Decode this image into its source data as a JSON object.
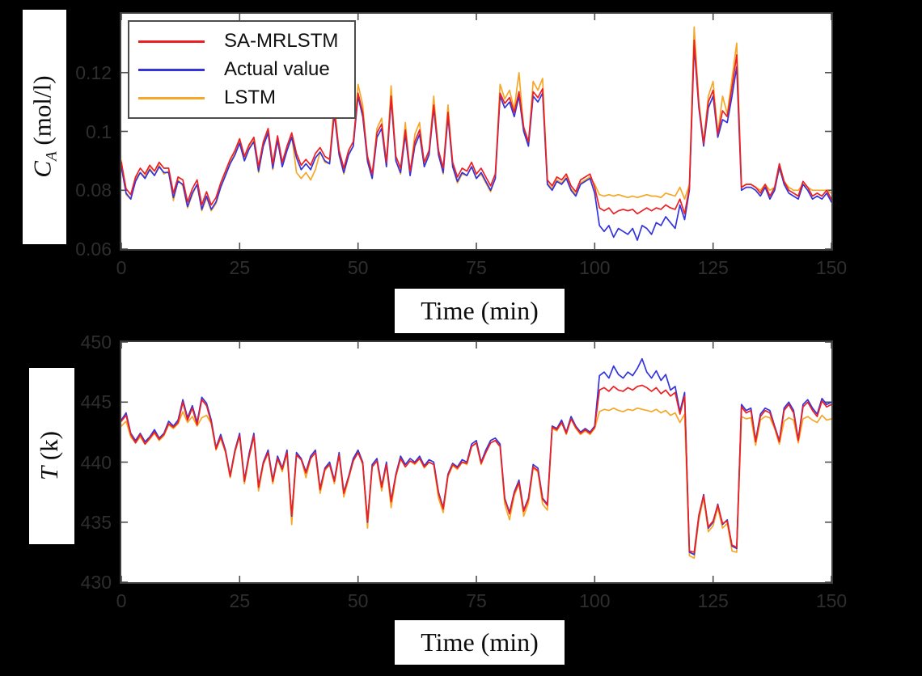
{
  "figure": {
    "background_color": "#000000",
    "plot_background_color": "#ffffff",
    "frame_color": "#3d3d3d",
    "tick_color": "#4f4f4f",
    "tick_label_color": "#2e2e2e",
    "legend_border_color": "#4d4d4d"
  },
  "axis_labels": {
    "top_y": {
      "main": "C",
      "sub": "A",
      "unit": " (mol/l)"
    },
    "bottom_y": {
      "main": "T",
      "sub": "",
      "unit": " (k)"
    }
  },
  "chart_data": [
    {
      "type": "line",
      "title": "",
      "xlabel": "Time (min)",
      "ylabel": "C_A (mol/l)",
      "xlim": [
        0,
        150
      ],
      "ylim": [
        0.06,
        0.14
      ],
      "xticks": [
        0,
        25,
        50,
        75,
        100,
        125,
        150
      ],
      "xtick_labels": [
        "0",
        "25",
        "50",
        "75",
        "100",
        "125",
        "150"
      ],
      "yticks": [
        0.06,
        0.08,
        0.1,
        0.12
      ],
      "ytick_labels": [
        "0.06",
        "0.08",
        "0.1",
        "0.12"
      ],
      "grid": false,
      "legend_position": "top-left",
      "x_start": 0,
      "x_step": 1,
      "series": [
        {
          "name": "SA-MRLSTM",
          "color": "#ec2024",
          "values": [
            0.0895,
            0.0805,
            0.0785,
            0.0845,
            0.0875,
            0.0855,
            0.0885,
            0.0865,
            0.0895,
            0.0875,
            0.0875,
            0.079,
            0.0845,
            0.0835,
            0.076,
            0.0805,
            0.0835,
            0.075,
            0.0795,
            0.075,
            0.0775,
            0.0825,
            0.0865,
            0.0905,
            0.0935,
            0.0975,
            0.0915,
            0.0955,
            0.098,
            0.088,
            0.0965,
            0.101,
            0.089,
            0.0985,
            0.0895,
            0.095,
            0.0995,
            0.0925,
            0.0885,
            0.0905,
            0.0885,
            0.0925,
            0.0945,
            0.0915,
            0.0905,
            0.107,
            0.0935,
            0.0875,
            0.0935,
            0.0965,
            0.113,
            0.1065,
            0.0915,
            0.0855,
            0.0995,
            0.1025,
            0.0895,
            0.112,
            0.0915,
            0.0875,
            0.1005,
            0.0865,
            0.0965,
            0.1005,
            0.0895,
            0.0935,
            0.109,
            0.0935,
            0.0875,
            0.1065,
            0.0895,
            0.0845,
            0.0875,
            0.0865,
            0.0895,
            0.0855,
            0.0875,
            0.0845,
            0.0815,
            0.0855,
            0.113,
            0.1095,
            0.1115,
            0.1065,
            0.1135,
            0.1015,
            0.0965,
            0.1135,
            0.1115,
            0.1145,
            0.0835,
            0.0815,
            0.0845,
            0.0835,
            0.0855,
            0.0815,
            0.0795,
            0.0835,
            0.0845,
            0.0855,
            0.081,
            0.074,
            0.073,
            0.074,
            0.072,
            0.073,
            0.0735,
            0.073,
            0.0735,
            0.072,
            0.073,
            0.074,
            0.073,
            0.074,
            0.0735,
            0.075,
            0.074,
            0.0735,
            0.077,
            0.072,
            0.081,
            0.131,
            0.109,
            0.096,
            0.11,
            0.114,
            0.099,
            0.107,
            0.105,
            0.115,
            0.126,
            0.081,
            0.082,
            0.082,
            0.081,
            0.079,
            0.082,
            0.078,
            0.081,
            0.089,
            0.083,
            0.08,
            0.079,
            0.078,
            0.083,
            0.081,
            0.078,
            0.079,
            0.078,
            0.08,
            0.077
          ]
        },
        {
          "name": "Actual value",
          "color": "#3434dd",
          "values": [
            0.088,
            0.079,
            0.077,
            0.083,
            0.086,
            0.084,
            0.087,
            0.085,
            0.088,
            0.086,
            0.086,
            0.0775,
            0.083,
            0.082,
            0.0745,
            0.079,
            0.082,
            0.0735,
            0.078,
            0.0735,
            0.076,
            0.081,
            0.085,
            0.089,
            0.092,
            0.096,
            0.09,
            0.094,
            0.0965,
            0.0865,
            0.095,
            0.0995,
            0.0875,
            0.097,
            0.088,
            0.0935,
            0.098,
            0.091,
            0.087,
            0.089,
            0.087,
            0.091,
            0.093,
            0.09,
            0.089,
            0.106,
            0.092,
            0.086,
            0.092,
            0.095,
            0.112,
            0.105,
            0.09,
            0.084,
            0.098,
            0.101,
            0.088,
            0.111,
            0.09,
            0.086,
            0.099,
            0.085,
            0.095,
            0.099,
            0.088,
            0.092,
            0.108,
            0.092,
            0.086,
            0.105,
            0.088,
            0.083,
            0.086,
            0.085,
            0.088,
            0.084,
            0.086,
            0.083,
            0.08,
            0.084,
            0.112,
            0.108,
            0.11,
            0.105,
            0.112,
            0.1,
            0.095,
            0.112,
            0.11,
            0.113,
            0.082,
            0.08,
            0.083,
            0.082,
            0.084,
            0.08,
            0.078,
            0.082,
            0.083,
            0.084,
            0.079,
            0.068,
            0.066,
            0.068,
            0.064,
            0.067,
            0.066,
            0.065,
            0.067,
            0.063,
            0.068,
            0.067,
            0.065,
            0.069,
            0.068,
            0.071,
            0.069,
            0.067,
            0.075,
            0.07,
            0.08,
            0.129,
            0.108,
            0.095,
            0.108,
            0.112,
            0.098,
            0.104,
            0.103,
            0.112,
            0.122,
            0.08,
            0.081,
            0.081,
            0.08,
            0.078,
            0.081,
            0.077,
            0.08,
            0.088,
            0.082,
            0.079,
            0.078,
            0.077,
            0.082,
            0.08,
            0.077,
            0.078,
            0.077,
            0.079,
            0.076
          ]
        },
        {
          "name": "LSTM",
          "color": "#f5a728",
          "values": [
            0.09,
            0.0785,
            0.077,
            0.084,
            0.086,
            0.0845,
            0.0875,
            0.085,
            0.0885,
            0.0855,
            0.0865,
            0.0765,
            0.0835,
            0.0815,
            0.074,
            0.0785,
            0.082,
            0.073,
            0.0775,
            0.073,
            0.0755,
            0.081,
            0.0855,
            0.0895,
            0.0925,
            0.0965,
            0.0905,
            0.0945,
            0.0975,
            0.086,
            0.0955,
            0.1005,
            0.087,
            0.0975,
            0.088,
            0.094,
            0.0985,
            0.086,
            0.084,
            0.086,
            0.0835,
            0.087,
            0.093,
            0.0895,
            0.089,
            0.11,
            0.092,
            0.0855,
            0.0925,
            0.095,
            0.116,
            0.109,
            0.0895,
            0.084,
            0.101,
            0.1045,
            0.088,
            0.1155,
            0.09,
            0.0855,
            0.103,
            0.085,
            0.099,
            0.103,
            0.088,
            0.0925,
            0.112,
            0.093,
            0.0855,
            0.109,
            0.088,
            0.0825,
            0.0855,
            0.085,
            0.088,
            0.084,
            0.0855,
            0.0825,
            0.0795,
            0.084,
            0.116,
            0.111,
            0.114,
            0.1075,
            0.12,
            0.101,
            0.095,
            0.117,
            0.114,
            0.118,
            0.0825,
            0.0805,
            0.0835,
            0.0825,
            0.0845,
            0.0805,
            0.0785,
            0.0825,
            0.0835,
            0.0845,
            0.082,
            0.0785,
            0.078,
            0.0785,
            0.078,
            0.0785,
            0.078,
            0.0775,
            0.078,
            0.0775,
            0.078,
            0.0785,
            0.078,
            0.078,
            0.0775,
            0.079,
            0.0785,
            0.078,
            0.081,
            0.077,
            0.082,
            0.1355,
            0.11,
            0.096,
            0.112,
            0.117,
            0.099,
            0.112,
            0.106,
            0.118,
            0.13,
            0.081,
            0.082,
            0.082,
            0.081,
            0.08,
            0.082,
            0.08,
            0.081,
            0.087,
            0.083,
            0.081,
            0.08,
            0.08,
            0.082,
            0.081,
            0.08,
            0.08,
            0.08,
            0.08,
            0.079
          ]
        }
      ]
    },
    {
      "type": "line",
      "title": "",
      "xlabel": "Time (min)",
      "ylabel": "T (k)",
      "xlim": [
        0,
        150
      ],
      "ylim": [
        430,
        450
      ],
      "xticks": [
        0,
        25,
        50,
        75,
        100,
        125,
        150
      ],
      "xtick_labels": [
        "0",
        "25",
        "50",
        "75",
        "100",
        "125",
        "150"
      ],
      "yticks": [
        430,
        435,
        440,
        445,
        450
      ],
      "ytick_labels": [
        "430",
        "435",
        "440",
        "445",
        "450"
      ],
      "grid": false,
      "legend_position": "none",
      "x_start": 0,
      "x_step": 1,
      "series": [
        {
          "name": "SA-MRLSTM",
          "color": "#ec2024",
          "values": [
            443.4,
            443.9,
            442.3,
            441.6,
            442.3,
            441.5,
            442.0,
            442.5,
            441.9,
            442.3,
            443.2,
            442.9,
            443.3,
            445.0,
            443.5,
            444.5,
            443.1,
            445.2,
            444.7,
            443.3,
            441.1,
            442.1,
            440.9,
            438.8,
            440.9,
            442.2,
            438.4,
            440.5,
            442.2,
            437.9,
            439.9,
            440.8,
            438.4,
            440.3,
            439.4,
            440.8,
            435.6,
            440.6,
            440.2,
            439.1,
            440.3,
            440.8,
            437.7,
            439.4,
            439.8,
            438.4,
            440.6,
            437.4,
            438.7,
            440.1,
            440.8,
            439.9,
            435.1,
            439.6,
            440.1,
            437.9,
            439.8,
            436.7,
            438.9,
            440.3,
            439.6,
            440.1,
            439.9,
            440.3,
            439.6,
            440.0,
            439.8,
            437.4,
            436.1,
            438.9,
            439.8,
            439.5,
            440.0,
            439.9,
            441.3,
            441.6,
            439.9,
            440.8,
            441.6,
            441.8,
            441.3,
            436.9,
            435.7,
            437.4,
            438.3,
            435.9,
            436.9,
            439.6,
            439.3,
            436.9,
            436.4,
            442.9,
            442.7,
            443.3,
            442.4,
            443.6,
            442.9,
            442.4,
            442.7,
            442.4,
            442.9,
            446.0,
            446.2,
            445.9,
            446.3,
            446.0,
            445.9,
            446.2,
            446.0,
            446.3,
            446.4,
            446.2,
            445.9,
            446.2,
            445.7,
            446.0,
            445.5,
            445.8,
            444.0,
            445.5,
            432.6,
            432.5,
            435.6,
            437.2,
            434.6,
            435.1,
            436.4,
            434.9,
            435.1,
            433.1,
            432.9,
            444.6,
            444.1,
            444.3,
            441.7,
            443.8,
            444.3,
            444.1,
            442.9,
            441.7,
            444.3,
            444.8,
            444.1,
            441.8,
            444.6,
            445.0,
            444.3,
            443.8,
            445.1,
            444.6,
            444.8
          ]
        },
        {
          "name": "Actual value",
          "color": "#3434dd",
          "values": [
            443.5,
            444.1,
            442.4,
            441.8,
            442.4,
            441.7,
            442.1,
            442.7,
            442.0,
            442.4,
            443.4,
            443.0,
            443.5,
            445.2,
            443.7,
            444.7,
            443.3,
            445.4,
            444.9,
            443.5,
            441.2,
            442.3,
            441.0,
            438.9,
            441.0,
            442.4,
            438.5,
            440.7,
            442.4,
            438.0,
            440.0,
            441.0,
            438.5,
            440.5,
            439.5,
            441.0,
            435.5,
            440.8,
            440.3,
            439.2,
            440.5,
            441.0,
            437.8,
            439.5,
            440.0,
            438.5,
            440.8,
            437.5,
            438.8,
            440.3,
            441.0,
            440.0,
            435.0,
            439.8,
            440.3,
            438.0,
            440.0,
            436.8,
            439.0,
            440.5,
            439.8,
            440.3,
            440.0,
            440.5,
            439.7,
            440.2,
            440.0,
            437.5,
            436.2,
            439.0,
            439.9,
            439.6,
            440.2,
            440.0,
            441.5,
            441.8,
            440.0,
            441.0,
            441.8,
            442.0,
            441.5,
            437.0,
            435.8,
            437.5,
            438.5,
            436.0,
            437.0,
            439.8,
            439.5,
            437.0,
            436.5,
            443.0,
            442.8,
            443.5,
            442.5,
            443.8,
            443.0,
            442.5,
            442.8,
            442.5,
            443.0,
            447.2,
            447.5,
            447.0,
            448.0,
            447.3,
            447.0,
            447.5,
            447.2,
            447.8,
            448.6,
            447.5,
            447.0,
            447.6,
            446.8,
            447.3,
            446.0,
            446.3,
            444.2,
            445.8,
            432.5,
            432.3,
            435.5,
            437.3,
            434.5,
            435.0,
            436.5,
            434.8,
            435.2,
            433.0,
            432.8,
            444.8,
            444.3,
            444.5,
            441.8,
            444.0,
            444.5,
            444.3,
            443.0,
            441.8,
            444.5,
            445.0,
            444.3,
            441.9,
            444.8,
            445.2,
            444.5,
            444.0,
            445.3,
            444.8,
            445.0
          ]
        },
        {
          "name": "LSTM",
          "color": "#f5a728",
          "values": [
            443.0,
            443.4,
            442.1,
            441.6,
            442.1,
            441.5,
            441.9,
            442.4,
            441.8,
            442.2,
            443.1,
            442.8,
            443.2,
            444.2,
            443.3,
            443.8,
            443.0,
            443.7,
            443.9,
            443.2,
            441.0,
            442.0,
            440.8,
            438.7,
            440.8,
            442.2,
            438.2,
            440.4,
            442.1,
            437.6,
            439.8,
            440.8,
            438.2,
            440.3,
            439.2,
            440.8,
            434.8,
            440.6,
            440.3,
            438.7,
            440.3,
            440.8,
            437.4,
            439.3,
            439.8,
            438.2,
            440.6,
            437.1,
            438.6,
            440.1,
            440.8,
            439.8,
            434.5,
            439.6,
            440.1,
            437.6,
            439.8,
            436.2,
            438.8,
            440.3,
            439.6,
            440.1,
            439.8,
            440.3,
            439.5,
            440.0,
            439.8,
            437.0,
            435.8,
            438.8,
            439.7,
            439.4,
            440.0,
            439.8,
            441.3,
            441.6,
            439.8,
            440.8,
            441.6,
            441.8,
            441.3,
            436.5,
            435.2,
            437.2,
            438.2,
            435.5,
            436.6,
            439.5,
            439.2,
            436.5,
            436.0,
            442.8,
            442.6,
            443.3,
            442.3,
            443.6,
            442.8,
            442.3,
            442.6,
            442.3,
            442.8,
            444.2,
            444.4,
            444.3,
            444.5,
            444.3,
            444.2,
            444.4,
            444.3,
            444.5,
            444.4,
            444.3,
            444.2,
            444.4,
            444.1,
            444.3,
            443.9,
            444.1,
            443.3,
            444.0,
            432.2,
            432.0,
            435.2,
            437.0,
            434.2,
            434.7,
            436.2,
            434.5,
            434.9,
            432.6,
            432.5,
            443.8,
            443.6,
            443.7,
            441.4,
            443.5,
            443.8,
            443.7,
            442.8,
            441.5,
            443.4,
            443.7,
            443.5,
            441.6,
            443.6,
            443.8,
            443.5,
            443.3,
            443.9,
            443.5,
            443.6
          ]
        }
      ]
    }
  ]
}
